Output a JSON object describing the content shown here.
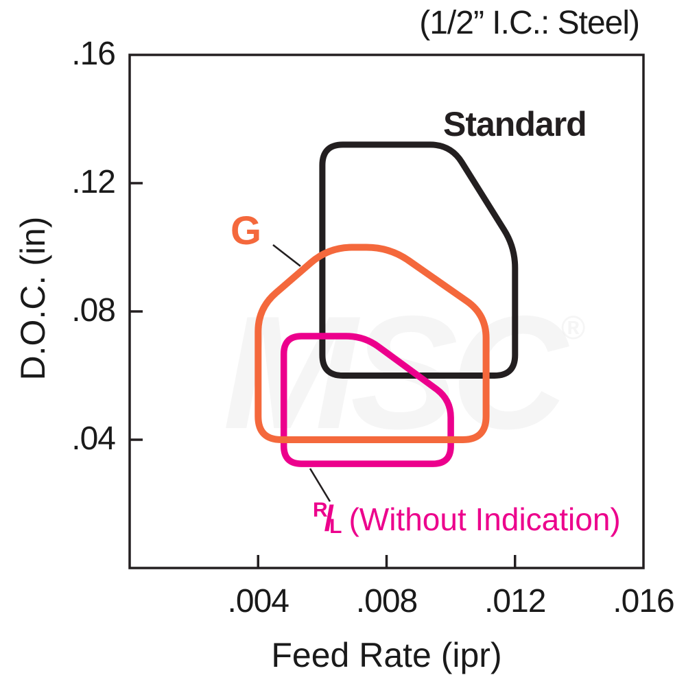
{
  "title": "(1/2” I.C.: Steel)",
  "watermark": {
    "text": "MSC",
    "reg": "®"
  },
  "axes": {
    "x_label": "Feed Rate (ipr)",
    "y_label": "D.O.C. (in)"
  },
  "labels": {
    "standard": "Standard",
    "g": "G",
    "rl_numerator": "R",
    "rl_slash": "/",
    "rl_denominator": "L",
    "rl_suffix": "(Without Indication)"
  },
  "colors": {
    "line_black": "#231f20",
    "line_orange": "#f4683c",
    "line_magenta": "#ec008c"
  },
  "chart_data": {
    "type": "area",
    "title": "(1/2” I.C.: Steel)",
    "xlabel": "Feed Rate (ipr)",
    "ylabel": "D.O.C. (in)",
    "xlim": [
      0,
      0.016
    ],
    "ylim": [
      0,
      0.16
    ],
    "grid": false,
    "legend_position": "labels-on-plot",
    "frame_color": "#231f20",
    "x_ticks": [
      {
        "label": ".004",
        "value": 0.004
      },
      {
        "label": ".008",
        "value": 0.008
      },
      {
        "label": ".012",
        "value": 0.012
      },
      {
        "label": ".016",
        "value": 0.016
      }
    ],
    "y_ticks": [
      {
        "label": ".16",
        "value": 0.16
      },
      {
        "label": ".12",
        "value": 0.12
      },
      {
        "label": ".08",
        "value": 0.08
      },
      {
        "label": ".04",
        "value": 0.04
      }
    ],
    "regions": [
      {
        "id": "standard",
        "name": "Standard",
        "color": "#231f20",
        "stroke_width": 9,
        "corner_radius": 30,
        "vertices": [
          [
            0.006,
            0.06
          ],
          [
            0.006,
            0.132
          ],
          [
            0.01,
            0.132
          ],
          [
            0.012,
            0.1
          ],
          [
            0.012,
            0.06
          ]
        ]
      },
      {
        "id": "rl-without-indication",
        "name": "R/L (Without Indication)",
        "color": "#ec008c",
        "stroke_width": 9.5,
        "corner_radius": 26,
        "vertices": [
          [
            0.0048,
            0.0325
          ],
          [
            0.0048,
            0.0723
          ],
          [
            0.0073,
            0.0723
          ],
          [
            0.01,
            0.0525
          ],
          [
            0.01,
            0.0325
          ]
        ]
      },
      {
        "id": "g",
        "name": "G",
        "color": "#f4683c",
        "stroke_width": 10,
        "corner_radius": 34,
        "vertices": [
          [
            0.004,
            0.04
          ],
          [
            0.004,
            0.081
          ],
          [
            0.0062,
            0.1
          ],
          [
            0.0081,
            0.1
          ],
          [
            0.0111,
            0.079
          ],
          [
            0.0111,
            0.04
          ]
        ]
      }
    ]
  }
}
